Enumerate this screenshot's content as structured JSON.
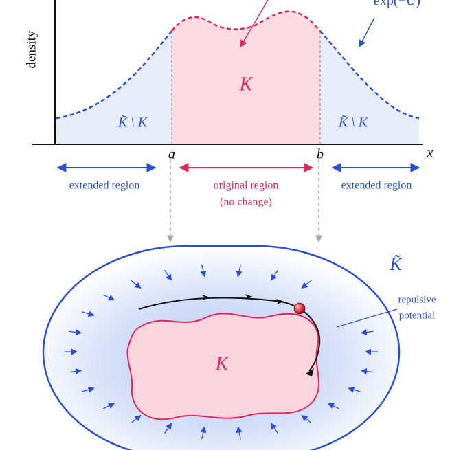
{
  "plot": {
    "y_label": "density",
    "curve_label": "exp(−U)",
    "inner_label": "K",
    "outer_labels": [
      "K̃ \\ K",
      "K̃ \\ K"
    ],
    "ticks": [
      "a",
      "b"
    ],
    "x_label": "x"
  },
  "regions": [
    {
      "label": "extended region"
    },
    {
      "label": "original region",
      "note": "(no change)"
    },
    {
      "label": "extended region"
    }
  ],
  "domain": {
    "outer_label": "K̃",
    "annotation": [
      "repulsive",
      "potential"
    ],
    "inner_label": "K"
  }
}
